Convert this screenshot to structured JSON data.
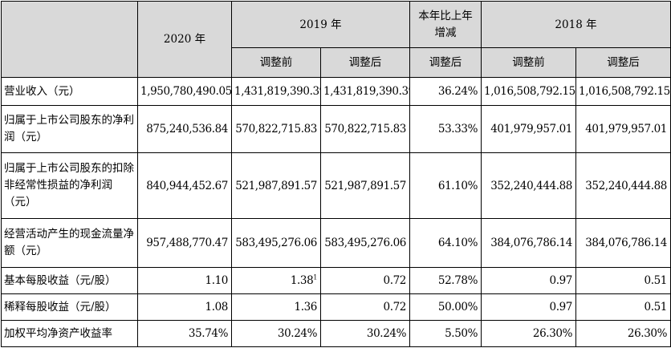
{
  "header": {
    "year_2020": "2020 年",
    "year_2019": "2019 年",
    "change_line1": "本年比上年",
    "change_line2": "增减",
    "year_2018": "2018 年",
    "before_adj": "调整前",
    "after_adj": "调整后",
    "change_after_adj": "调整后"
  },
  "rows": [
    {
      "label": "营业收入（元）",
      "v2020": "1,950,780,490.05",
      "v2019_before": "1,431,819,390.39",
      "v2019_after": "1,431,819,390.39",
      "change": "36.24%",
      "v2018_before": "1,016,508,792.15",
      "v2018_after": "1,016,508,792.15"
    },
    {
      "label": "归属于上市公司股东的净利润（元）",
      "v2020": "875,240,536.84",
      "v2019_before": "570,822,715.83",
      "v2019_after": "570,822,715.83",
      "change": "53.33%",
      "v2018_before": "401,979,957.01",
      "v2018_after": "401,979,957.01"
    },
    {
      "label": "归属于上市公司股东的扣除非经常性损益的净利润（元）",
      "v2020": "840,944,452.67",
      "v2019_before": "521,987,891.57",
      "v2019_after": "521,987,891.57",
      "change": "61.10%",
      "v2018_before": "352,240,444.88",
      "v2018_after": "352,240,444.88"
    },
    {
      "label": "经营活动产生的现金流量净额（元）",
      "v2020": "957,488,770.47",
      "v2019_before": "583,495,276.06",
      "v2019_after": "583,495,276.06",
      "change": "64.10%",
      "v2018_before": "384,076,786.14",
      "v2018_after": "384,076,786.14"
    },
    {
      "label": "基本每股收益（元/股）",
      "v2020": "1.10",
      "v2019_before": "1.38",
      "v2019_before_note": "1",
      "v2019_after": "0.72",
      "change": "52.78%",
      "v2018_before": "0.97",
      "v2018_after": "0.51"
    },
    {
      "label": "稀释每股收益（元/股）",
      "v2020": "1.08",
      "v2019_before": "1.36",
      "v2019_after": "0.72",
      "change": "50.00%",
      "v2018_before": "0.97",
      "v2018_after": "0.51"
    },
    {
      "label": "加权平均净资产收益率",
      "v2020": "35.74%",
      "v2019_before": "30.24%",
      "v2019_after": "30.24%",
      "change": "5.50%",
      "v2018_before": "26.30%",
      "v2018_after": "26.30%"
    }
  ]
}
